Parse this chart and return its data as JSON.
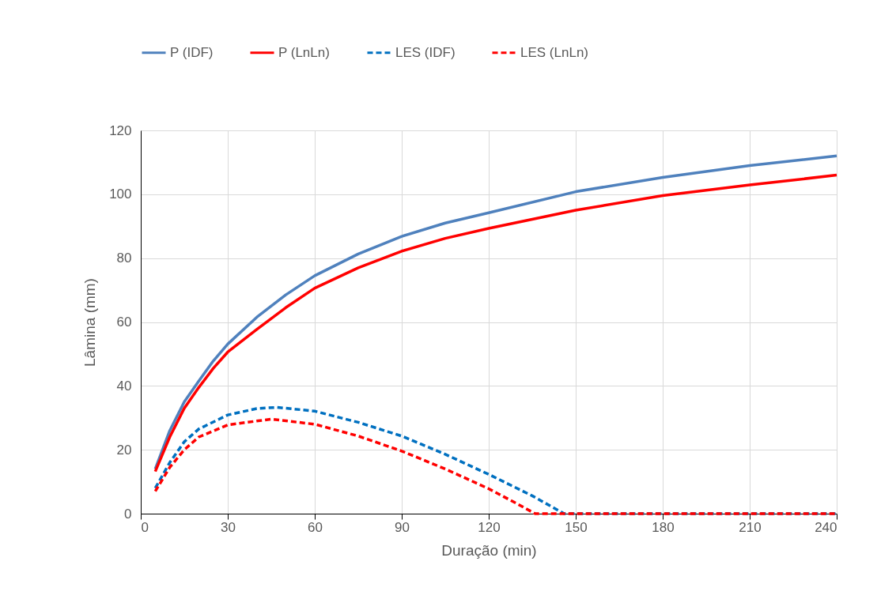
{
  "chart_data": {
    "type": "line",
    "xlabel": "Duração (min)",
    "ylabel": "Lâmina (mm)",
    "xlim": [
      0,
      240
    ],
    "xticks": [
      0,
      30,
      60,
      90,
      120,
      150,
      180,
      210,
      240
    ],
    "ylim": [
      0,
      120
    ],
    "yticks": [
      0,
      20,
      40,
      60,
      80,
      100,
      120
    ],
    "grid": true,
    "legend": "top",
    "marker": "none",
    "series": [
      {
        "name": "P (IDF)",
        "color": "#4f81bd",
        "line_style": "solid",
        "x": [
          5,
          10,
          15,
          20,
          25,
          30,
          40,
          50,
          60,
          75,
          90,
          105,
          120,
          150,
          180,
          210,
          240
        ],
        "values": [
          14,
          26,
          35,
          41.5,
          47.8,
          53.1,
          61.5,
          68.5,
          74.5,
          81.3,
          86.8,
          91,
          94.2,
          100.8,
          105.3,
          109,
          112
        ]
      },
      {
        "name": "P (LnLn)",
        "color": "#ff0000",
        "line_style": "solid",
        "x": [
          5,
          10,
          15,
          20,
          25,
          30,
          40,
          50,
          60,
          75,
          90,
          105,
          120,
          150,
          180,
          210,
          240
        ],
        "values": [
          13.2,
          24,
          33,
          39.5,
          45.5,
          50.6,
          57.7,
          64.5,
          70.6,
          77,
          82.2,
          86.2,
          89.3,
          95,
          99.6,
          102.9,
          106
        ]
      },
      {
        "name": "LES (IDF)",
        "color": "#0070c0",
        "line_style": "dashed",
        "x": [
          5,
          10,
          15,
          20,
          30,
          40,
          47,
          60,
          75,
          90,
          105,
          120,
          135,
          146,
          240
        ],
        "values": [
          8,
          16,
          22.5,
          26.5,
          30.9,
          32.9,
          33.3,
          32.1,
          28.6,
          24.3,
          18.6,
          12.3,
          5.6,
          0,
          0
        ]
      },
      {
        "name": "LES (LnLn)",
        "color": "#ff0000",
        "line_style": "dashed",
        "x": [
          5,
          10,
          15,
          20,
          30,
          45,
          60,
          75,
          90,
          105,
          120,
          130,
          136,
          240
        ],
        "values": [
          7,
          14.5,
          20,
          24,
          27.8,
          29.6,
          28,
          24.3,
          19.6,
          14,
          7.8,
          3,
          0,
          0
        ]
      }
    ]
  }
}
